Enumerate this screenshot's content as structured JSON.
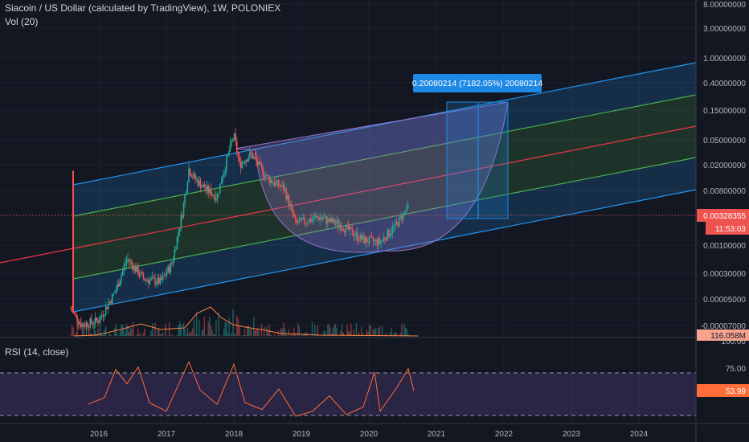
{
  "header": {
    "title": "Siacoin / US Dollar (calculated by TradingView), 1W, POLONIEX",
    "volume_label": "Vol (20)"
  },
  "rsi_panel": {
    "label": "RSI (14, close)",
    "current_value": "53.99",
    "levels": [
      "100.00",
      "75.00"
    ]
  },
  "price_badge": {
    "price": "0.00328355",
    "countdown": "11:53:03"
  },
  "volume_badge": "116.058M",
  "measure_label": "0.20080214 (7182.05%) 20080214",
  "colors": {
    "background": "#131722",
    "grid": "#1e222d",
    "candle_up": "#26a69a",
    "candle_down": "#ef5350",
    "channel_outer": "#2196f3",
    "channel_inner": "#4caf50",
    "channel_mid": "#f23645",
    "volume_ma": "#ff7f3f",
    "rsi_line": "#ff6d38",
    "rsi_band": "#7e57c2",
    "measure": "#1e88e5",
    "arc": "#9575cd"
  },
  "chart_data": {
    "type": "candlestick",
    "title": "Siacoin / US Dollar (calculated by TradingView), 1W, POLONIEX",
    "yscale": "log",
    "x_ticks": [
      "2016",
      "2017",
      "2018",
      "2019",
      "2020",
      "2021",
      "2022",
      "2023",
      "2024"
    ],
    "y_ticks": [
      "8.00000000",
      "3.00000000",
      "1.00000000",
      "0.40000000",
      "0.15000000",
      "0.05000000",
      "0.02000000",
      "0.00800000",
      "0.00328355",
      "0.00100000",
      "0.00030000",
      "0.00005000",
      "-0.00007000"
    ],
    "price_path": [
      [
        "2015-08",
        9e-05
      ],
      [
        "2015-10",
        5e-05
      ],
      [
        "2016-01",
        6e-05
      ],
      [
        "2016-04",
        0.00018
      ],
      [
        "2016-06",
        0.0006
      ],
      [
        "2016-09",
        0.00028
      ],
      [
        "2016-12",
        0.00025
      ],
      [
        "2017-02",
        0.0005
      ],
      [
        "2017-04",
        0.004
      ],
      [
        "2017-05",
        0.017
      ],
      [
        "2017-06",
        0.012
      ],
      [
        "2017-08",
        0.008
      ],
      [
        "2017-10",
        0.006
      ],
      [
        "2017-12",
        0.03
      ],
      [
        "2018-01",
        0.06
      ],
      [
        "2018-02",
        0.02
      ],
      [
        "2018-04",
        0.03
      ],
      [
        "2018-07",
        0.012
      ],
      [
        "2018-10",
        0.008
      ],
      [
        "2018-12",
        0.0022
      ],
      [
        "2019-04",
        0.0028
      ],
      [
        "2019-08",
        0.0021
      ],
      [
        "2019-12",
        0.0012
      ],
      [
        "2020-03",
        0.0011
      ],
      [
        "2020-06",
        0.0022
      ],
      [
        "2020-08",
        0.0042
      ]
    ],
    "measurement": {
      "price_change": "0.20080214",
      "percent_change": "7182.05%",
      "label": "0.20080214 (7182.05%) 20080214"
    },
    "rsi": {
      "label": "RSI (14, close)",
      "current": 53.99,
      "series": [
        [
          "2015-11",
          38
        ],
        [
          "2016-02",
          46
        ],
        [
          "2016-04",
          79
        ],
        [
          "2016-06",
          62
        ],
        [
          "2016-08",
          82
        ],
        [
          "2016-10",
          40
        ],
        [
          "2017-01",
          30
        ],
        [
          "2017-05",
          88
        ],
        [
          "2017-07",
          55
        ],
        [
          "2017-10",
          38
        ],
        [
          "2018-01",
          85
        ],
        [
          "2018-03",
          40
        ],
        [
          "2018-06",
          32
        ],
        [
          "2018-09",
          56
        ],
        [
          "2018-12",
          24
        ],
        [
          "2019-03",
          30
        ],
        [
          "2019-06",
          48
        ],
        [
          "2019-09",
          26
        ],
        [
          "2019-12",
          35
        ],
        [
          "2020-02",
          76
        ],
        [
          "2020-03",
          30
        ],
        [
          "2020-06",
          58
        ],
        [
          "2020-08",
          80
        ],
        [
          "2020-09",
          54
        ]
      ]
    }
  }
}
